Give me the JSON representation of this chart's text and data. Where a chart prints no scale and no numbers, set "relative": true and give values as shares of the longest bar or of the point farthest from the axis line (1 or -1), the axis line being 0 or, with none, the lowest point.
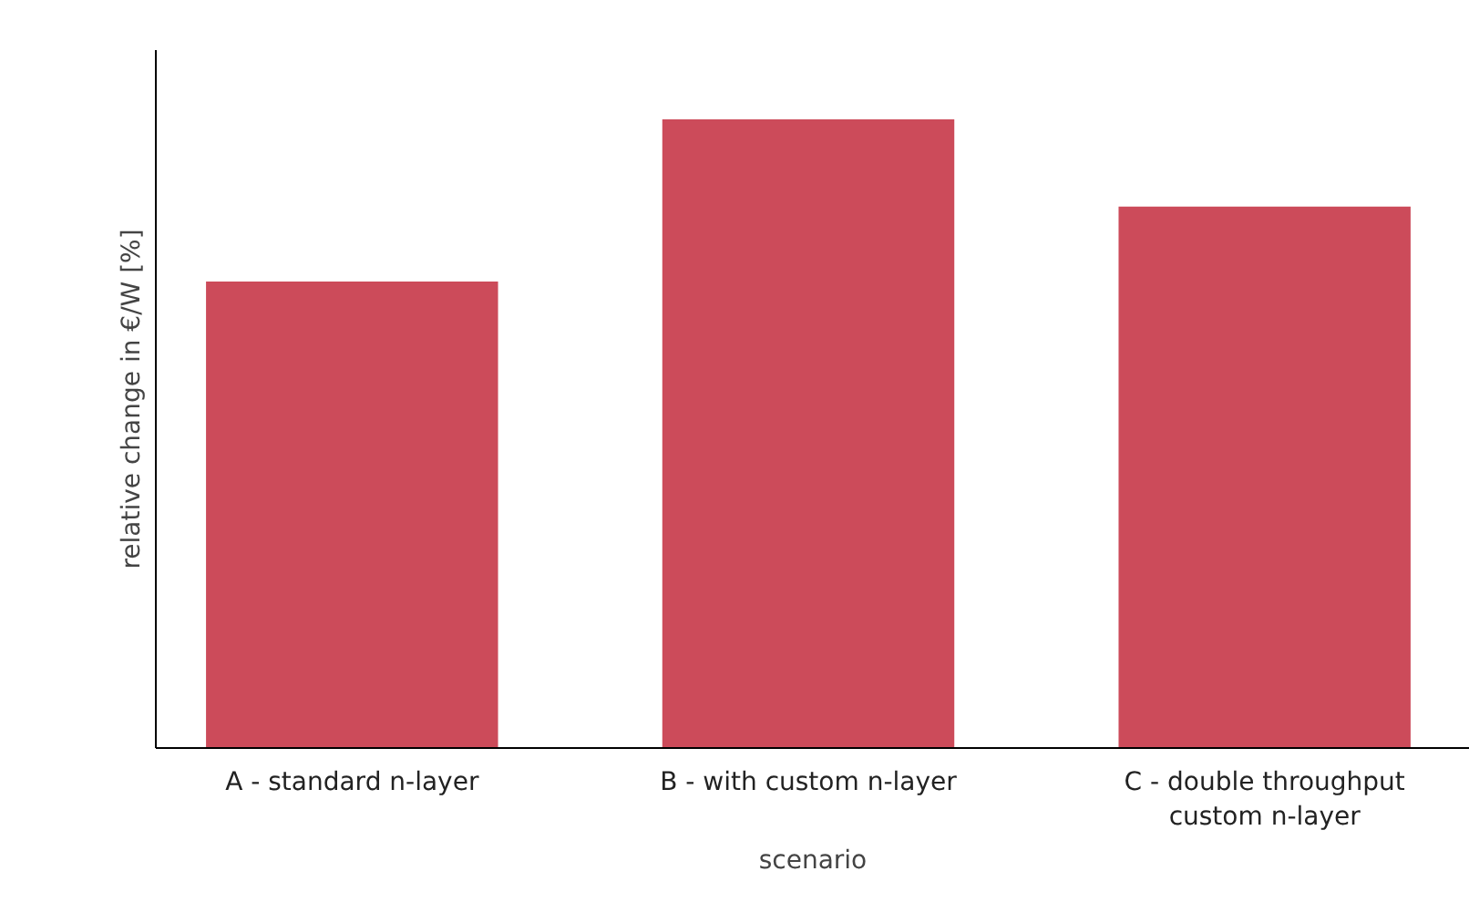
{
  "chart_data": {
    "type": "bar",
    "relative": true,
    "xlabel": "scenario",
    "ylabel": "relative change in €/W [%]",
    "categories": [
      "A - standard n-layer",
      "B - with custom n-layer",
      "C - double throughput\ncustom n-layer"
    ],
    "values": [
      0.742,
      1,
      0.861
    ],
    "color": "#cc4b5a"
  }
}
